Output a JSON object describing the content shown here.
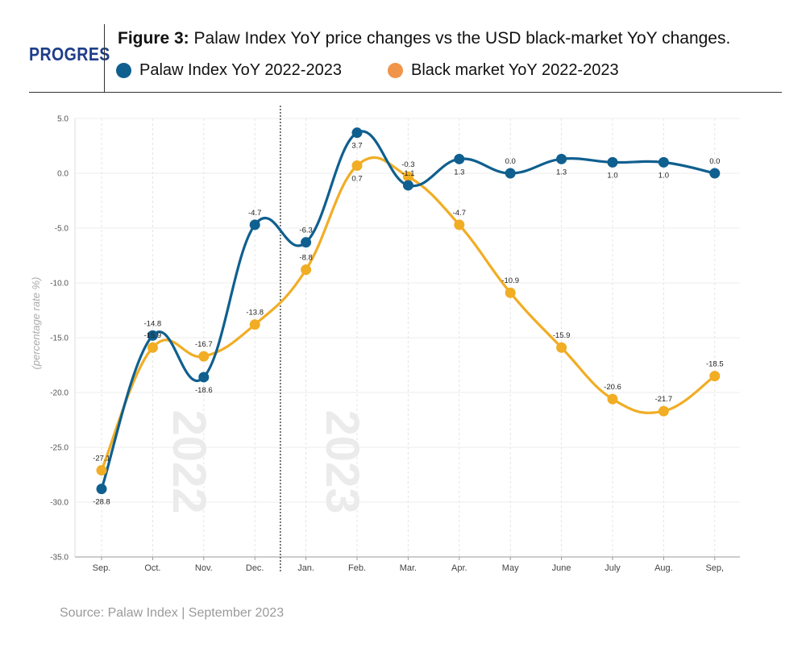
{
  "header": {
    "logo": "PROGRES",
    "title_bold": "Figure 3:",
    "title_rest": " Palaw Index YoY price changes vs the USD black-market YoY changes."
  },
  "source": "Source: Palaw Index | September 2023",
  "chart_data": {
    "type": "line",
    "categories": [
      "Sep.",
      "Oct.",
      "Nov.",
      "Dec.",
      "Jan.",
      "Feb.",
      "Mar.",
      "Apr.",
      "May",
      "June",
      "July",
      "Aug.",
      "Sep,"
    ],
    "series": [
      {
        "name": "Palaw Index YoY 2022-2023",
        "color": "#0f5f8f",
        "values": [
          -28.8,
          -14.8,
          -18.6,
          -4.7,
          -6.3,
          3.7,
          -1.1,
          1.3,
          0.0,
          1.3,
          1.0,
          1.0,
          0.0
        ]
      },
      {
        "name": "Black market YoY 2022-2023",
        "color": "#f1ad24",
        "legend_color": "#f0944a",
        "values": [
          -27.1,
          -15.9,
          -16.7,
          -13.8,
          -8.8,
          0.7,
          -0.3,
          -4.7,
          -10.9,
          -15.9,
          -20.6,
          -21.7,
          -18.5
        ]
      }
    ],
    "ylabel": "(percentage rate %)",
    "ylim": [
      -35,
      5
    ],
    "yticks": [
      5,
      0,
      -5,
      -10,
      -15,
      -20,
      -25,
      -30,
      -35
    ],
    "ytick_labels": [
      "5.0",
      "0.0",
      "-5.0",
      "-10.0",
      "-15.0",
      "-20.0",
      "-25.0",
      "-30.0",
      "-35.0"
    ],
    "grid": true,
    "year_labels": [
      "2022",
      "2023"
    ],
    "divider_after_category": "Dec."
  }
}
